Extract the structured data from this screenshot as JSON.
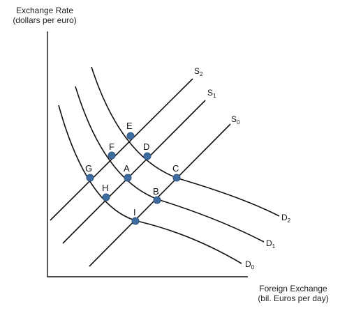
{
  "axes": {
    "y_title_line1": "Exchange Rate",
    "y_title_line2": "(dollars per euro)",
    "x_title_line1": "Foreign Exchange",
    "x_title_line2": "(bil. Euros per day)"
  },
  "supply_curves": [
    {
      "base": "S",
      "sub": "2"
    },
    {
      "base": "S",
      "sub": "1"
    },
    {
      "base": "S",
      "sub": "0"
    }
  ],
  "demand_curves": [
    {
      "base": "D",
      "sub": "2"
    },
    {
      "base": "D",
      "sub": "1"
    },
    {
      "base": "D",
      "sub": "0"
    }
  ],
  "points": [
    "E",
    "F",
    "D",
    "G",
    "A",
    "C",
    "H",
    "B",
    "I"
  ],
  "colors": {
    "point_fill": "#3f6da0",
    "line": "#111111"
  }
}
